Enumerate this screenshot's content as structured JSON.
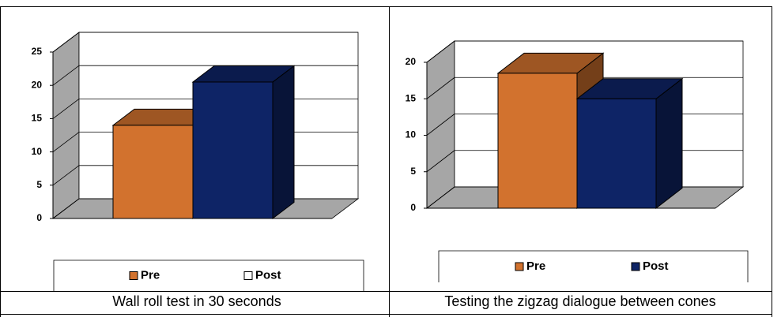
{
  "chart_data": [
    {
      "type": "bar3d",
      "title": "Wall roll test in 30 seconds",
      "series": [
        {
          "name": "Pre",
          "color": "#d2722e",
          "legend_color": "#d2722e",
          "values": [
            14
          ]
        },
        {
          "name": "Post",
          "color": "#0e2466",
          "legend_color": "#ffffff",
          "values": [
            20.5
          ]
        }
      ],
      "ylim": [
        0,
        25
      ],
      "yticks": [
        0,
        5,
        10,
        15,
        20,
        25
      ],
      "grid": true
    },
    {
      "type": "bar3d",
      "title": "Testing the zigzag dialogue between cones",
      "series": [
        {
          "name": "Pre",
          "color": "#d2722e",
          "legend_color": "#d2722e",
          "values": [
            18.5
          ]
        },
        {
          "name": "Post",
          "color": "#0e2466",
          "legend_color": "#0e2466",
          "values": [
            15
          ]
        }
      ],
      "ylim": [
        0,
        20
      ],
      "yticks": [
        0,
        5,
        10,
        15,
        20
      ],
      "grid": true
    }
  ]
}
